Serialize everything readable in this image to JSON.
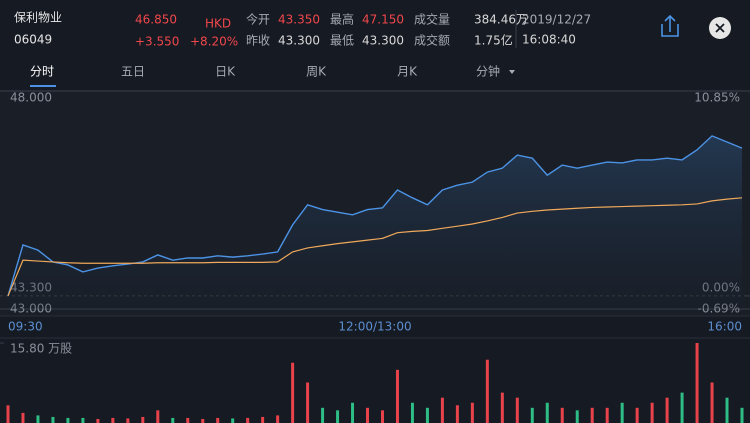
{
  "header": {
    "name": "保利物业",
    "code": "06049",
    "price": "46.850",
    "currency": "HKD",
    "change": "+3.550",
    "change_pct": "+8.20%",
    "stats": [
      {
        "label": "今开",
        "value": "43.350"
      },
      {
        "label": "昨收",
        "value": "43.300"
      },
      {
        "label": "最高",
        "value": "47.150"
      },
      {
        "label": "最低",
        "value": "43.300"
      },
      {
        "label": "成交量",
        "value": "384.46万"
      },
      {
        "label": "成交额",
        "value": "1.75亿"
      }
    ],
    "date": "2019/12/27",
    "time": "16:08:40"
  },
  "tabs": [
    "分时",
    "五日",
    "日K",
    "周K",
    "月K",
    "分钟"
  ],
  "chart_data": [
    {
      "type": "line",
      "xtick_labels": [
        "09:30",
        "12:00/13:00",
        "16:00"
      ],
      "ylim": [
        43,
        48
      ],
      "yticks": [
        {
          "value": 48,
          "label": "48.000"
        },
        {
          "value": 43.3,
          "label": "43.300"
        },
        {
          "value": 43,
          "label": "43.000"
        }
      ],
      "y2lim": [
        -0.69,
        10.85
      ],
      "y2ticks": [
        {
          "value": 10.85,
          "label": "10.85%"
        },
        {
          "value": 0,
          "label": "0.00%"
        },
        {
          "value": -0.69,
          "label": "-0.69%"
        }
      ],
      "series": [
        {
          "color": "#4c93e6",
          "values": [
            43.3,
            44.47,
            44.35,
            44.08,
            44.01,
            43.85,
            43.94,
            43.99,
            44.03,
            44.08,
            44.24,
            44.12,
            44.17,
            44.17,
            44.22,
            44.19,
            44.22,
            44.26,
            44.31,
            44.93,
            45.39,
            45.28,
            45.22,
            45.16,
            45.28,
            45.32,
            45.73,
            45.55,
            45.39,
            45.73,
            45.84,
            45.91,
            46.14,
            46.23,
            46.53,
            46.46,
            46.07,
            46.3,
            46.23,
            46.3,
            46.37,
            46.35,
            46.42,
            46.42,
            46.46,
            46.42,
            46.65,
            46.97,
            46.83,
            46.69
          ]
        },
        {
          "color": "#f0a95a",
          "values": [
            43.3,
            44.12,
            44.1,
            44.08,
            44.06,
            44.05,
            44.05,
            44.05,
            44.05,
            44.05,
            44.06,
            44.06,
            44.06,
            44.06,
            44.07,
            44.07,
            44.07,
            44.07,
            44.08,
            44.31,
            44.4,
            44.45,
            44.5,
            44.54,
            44.58,
            44.62,
            44.75,
            44.78,
            44.8,
            44.85,
            44.9,
            44.95,
            45.02,
            45.1,
            45.2,
            45.24,
            45.27,
            45.29,
            45.31,
            45.33,
            45.34,
            45.35,
            45.36,
            45.37,
            45.38,
            45.39,
            45.41,
            45.48,
            45.52,
            45.55
          ]
        }
      ]
    },
    {
      "type": "bar",
      "ylim": [
        0,
        15.8
      ],
      "yticks": [
        {
          "value": 15.8,
          "label": "15.80 万股"
        }
      ],
      "up_color": "#e8424b",
      "down_color": "#2dbd85",
      "values": [
        3.5,
        2,
        1.5,
        1.2,
        1,
        1,
        0.8,
        1,
        0.9,
        1.2,
        2.5,
        1,
        1,
        0.8,
        1,
        0.9,
        1,
        1.2,
        1.5,
        11.9,
        8,
        3,
        2.5,
        4,
        3,
        2.5,
        10.5,
        4,
        3,
        5,
        3.5,
        4,
        12.5,
        6,
        5,
        3,
        4,
        3,
        2.5,
        3,
        3,
        4,
        3,
        4,
        5,
        6,
        15.8,
        8,
        5,
        3
      ]
    }
  ]
}
